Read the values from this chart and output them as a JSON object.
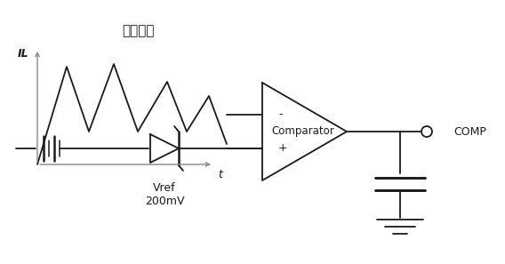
{
  "background_color": "#ffffff",
  "line_color": "#1a1a1a",
  "text_color": "#1a1a1a",
  "font_size": 9,
  "waveform_label": "电感电流",
  "axis_label_IL": "IL",
  "axis_label_t": "t",
  "vref_label": "Vref\n200mV",
  "comp_label": "COMP",
  "comparator_label": "Comparator",
  "comp_input_minus": "-",
  "comp_input_plus": "+",
  "gray": "#888888",
  "figw": 5.68,
  "figh": 2.97,
  "dpi": 100
}
